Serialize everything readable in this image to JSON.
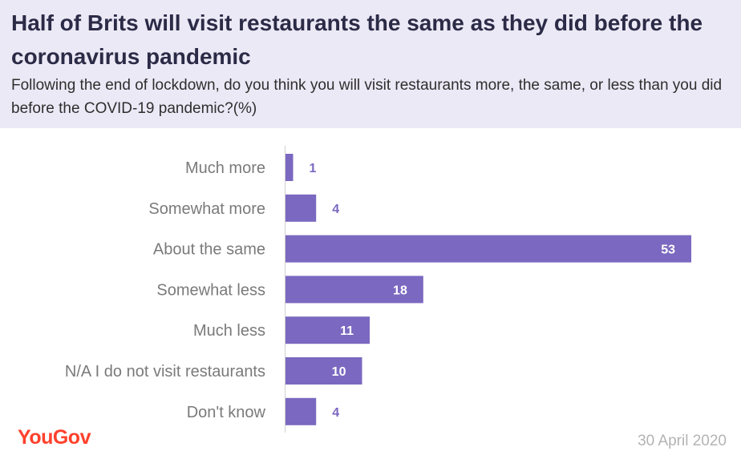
{
  "title": "Half of Brits will visit restaurants the same as they did before the coronavirus pandemic",
  "subtitle": "Following the end of lockdown, do you think you will visit restaurants more, the same, or less than you did before the COVID-19 pandemic?(%)",
  "logo": "YouGov",
  "date": "30  April 2020",
  "colors": {
    "bar": "#7b68c0",
    "header_bg": "#ece9f6",
    "logo": "#ff412c",
    "value_outside": "#7b68c0",
    "value_inside": "#ffffff"
  },
  "chart_data": {
    "type": "bar",
    "orientation": "horizontal",
    "categories": [
      "Much more",
      "Somewhat more",
      "About the same",
      "Somewhat less",
      "Much less",
      "N/A I do not visit restaurants",
      "Don't know"
    ],
    "values": [
      1,
      4,
      53,
      18,
      11,
      10,
      4
    ],
    "title": "Half of Brits will visit restaurants the same as they did before the coronavirus pandemic",
    "xlabel": "",
    "ylabel": "",
    "xlim": [
      0,
      53
    ],
    "grid": false,
    "legend": "none"
  }
}
